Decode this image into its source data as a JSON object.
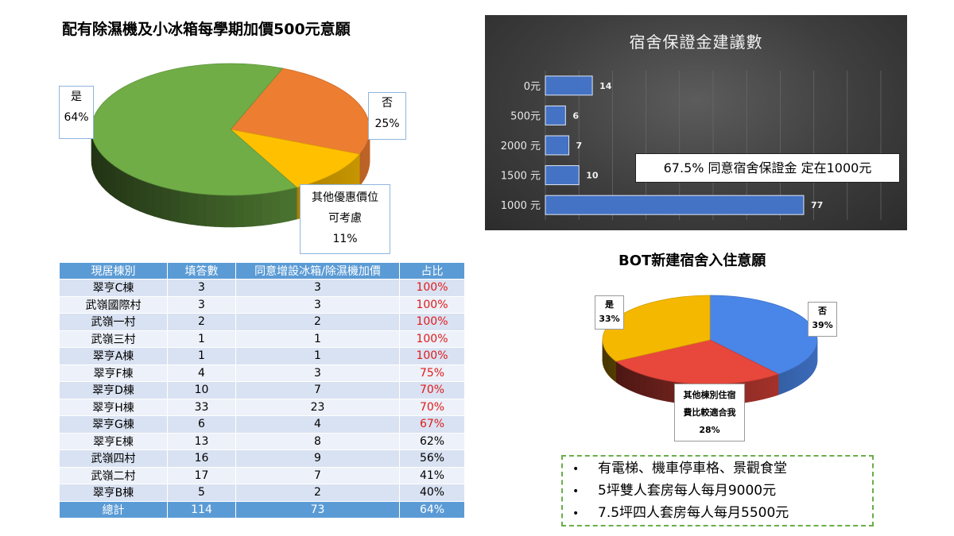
{
  "chart_data": [
    {
      "type": "pie",
      "title": "配有除濕機及小冰箱每學期加價500元意願",
      "slices": [
        {
          "label": "是",
          "value_label": "64%",
          "value": 64,
          "color": "#70ad47"
        },
        {
          "label": "否",
          "value_label": "25%",
          "value": 25,
          "color": "#ed7d31"
        },
        {
          "label_lines": [
            "其他優惠價位",
            "可考慮"
          ],
          "value_label": "11%",
          "value": 11,
          "color": "#ffc000"
        }
      ]
    },
    {
      "type": "bar",
      "orientation": "horizontal",
      "title": "宿舍保證金建議數",
      "categories": [
        "0元",
        "500元",
        "2000 元",
        "1500 元",
        "1000 元"
      ],
      "values": [
        14,
        6,
        7,
        10,
        77
      ],
      "value_labels": [
        "14",
        "6",
        "7",
        "10",
        "77"
      ],
      "xlim": [
        0,
        100
      ],
      "bar_color": "#4472c4",
      "annotation": "67.5% 同意宿舍保證金 定在1000元"
    },
    {
      "type": "pie",
      "title": "BOT新建宿舍入住意願",
      "slices": [
        {
          "label": "否",
          "value_label": "39%",
          "value": 39,
          "color": "#4a86e8"
        },
        {
          "label_lines": [
            "其他棟別住宿",
            "費比較適合我"
          ],
          "value_label": "28%",
          "value": 28,
          "color": "#e8473c"
        },
        {
          "label": "是",
          "value_label": "33%",
          "value": 33,
          "color": "#f5b800"
        }
      ]
    },
    {
      "type": "table",
      "columns": [
        "現居棟別",
        "填答數",
        "同意增設冰箱/除濕機加價",
        "占比"
      ],
      "rows": [
        {
          "c0": "翠亨C棟",
          "c1": "3",
          "c2": "3",
          "c3": "100%",
          "red": true
        },
        {
          "c0": "武嶺國際村",
          "c1": "3",
          "c2": "3",
          "c3": "100%",
          "red": true
        },
        {
          "c0": "武嶺一村",
          "c1": "2",
          "c2": "2",
          "c3": "100%",
          "red": true
        },
        {
          "c0": "武嶺三村",
          "c1": "1",
          "c2": "1",
          "c3": "100%",
          "red": true
        },
        {
          "c0": "翠亨A棟",
          "c1": "1",
          "c2": "1",
          "c3": "100%",
          "red": true
        },
        {
          "c0": "翠亨F棟",
          "c1": "4",
          "c2": "3",
          "c3": "75%",
          "red": true
        },
        {
          "c0": "翠亨D棟",
          "c1": "10",
          "c2": "7",
          "c3": "70%",
          "red": true
        },
        {
          "c0": "翠亨H棟",
          "c1": "33",
          "c2": "23",
          "c3": "70%",
          "red": true
        },
        {
          "c0": "翠亨G棟",
          "c1": "6",
          "c2": "4",
          "c3": "67%",
          "red": true
        },
        {
          "c0": "翠亨E棟",
          "c1": "13",
          "c2": "8",
          "c3": "62%",
          "red": false
        },
        {
          "c0": "武嶺四村",
          "c1": "16",
          "c2": "9",
          "c3": "56%",
          "red": false
        },
        {
          "c0": "武嶺二村",
          "c1": "17",
          "c2": "7",
          "c3": "41%",
          "red": false
        },
        {
          "c0": "翠亨B棟",
          "c1": "5",
          "c2": "2",
          "c3": "40%",
          "red": false
        }
      ],
      "total": {
        "c0": "總計",
        "c1": "114",
        "c2": "73",
        "c3": "64%"
      }
    }
  ],
  "bullets": {
    "marker": "•",
    "items": [
      "有電梯、機車停車格、景觀食堂",
      "5坪雙人套房每人每月9000元",
      "7.5坪四人套房每人每月5500元"
    ]
  }
}
